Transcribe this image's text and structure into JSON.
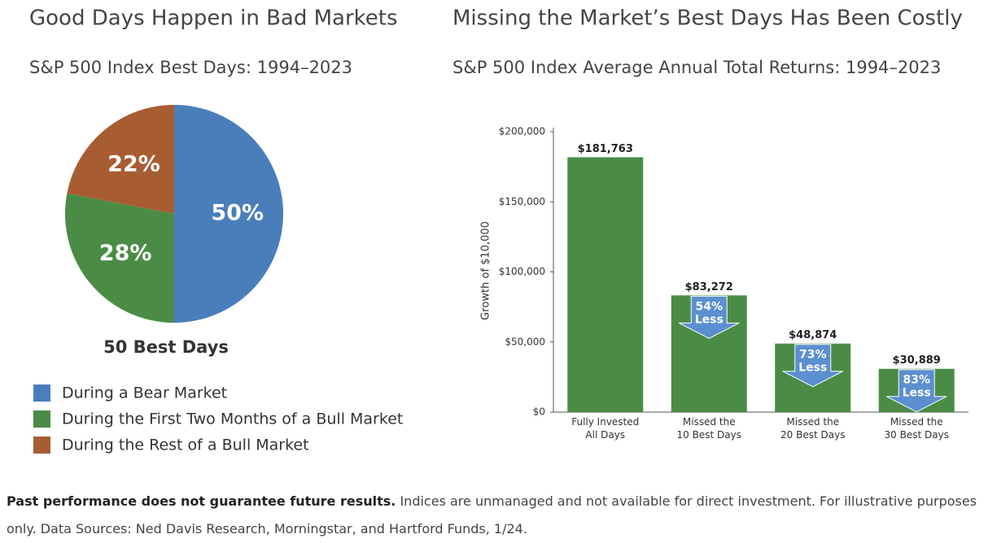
{
  "chart_data": [
    {
      "type": "pie",
      "title": "Good Days Happen in Bad Markets",
      "subtitle": "S&P 500 Index Best Days: 1994–2023",
      "caption": "50 Best Days",
      "categories": [
        "During a Bear Market",
        "During the First Two Months of a Bull Market",
        "During the Rest of a Bull Market"
      ],
      "values": [
        50,
        28,
        22
      ],
      "value_labels": [
        "50%",
        "28%",
        "22%"
      ],
      "colors": [
        "#4a7ebb",
        "#4a8c46",
        "#a85c32"
      ]
    },
    {
      "type": "bar",
      "title": "Missing the Market’s Best Days Has Been Costly",
      "subtitle": "S&P 500 Index Average Annual Total Returns: 1994–2023",
      "ylabel": "Growth of $10,000",
      "categories": [
        "Fully Invested\nAll Days",
        "Missed the\n10 Best Days",
        "Missed the\n20 Best Days",
        "Missed the\n30 Best Days"
      ],
      "values": [
        181763,
        83272,
        48874,
        30889
      ],
      "value_labels": [
        "$181,763",
        "$83,272",
        "$48,874",
        "$30,889"
      ],
      "reduction_labels": [
        null,
        "54%\nLess",
        "73%\nLess",
        "83%\nLess"
      ],
      "color": "#4a8c46",
      "arrow_color": "#5b8fd0",
      "ylim": [
        0,
        200000
      ],
      "yticks": [
        {
          "value": 0,
          "label": "$0"
        },
        {
          "value": 50000,
          "label": "$50,000"
        },
        {
          "value": 100000,
          "label": "$100,000"
        },
        {
          "value": 150000,
          "label": "$150,000"
        },
        {
          "value": 200000,
          "label": "$200,000"
        }
      ]
    }
  ],
  "footnote": {
    "bold": "Past performance does not guarantee future results.",
    "text": " Indices are unmanaged and not available for direct investment. For illustrative purposes only. Data Sources: Ned Davis Research, Morningstar, and Hartford Funds, 1/24."
  }
}
